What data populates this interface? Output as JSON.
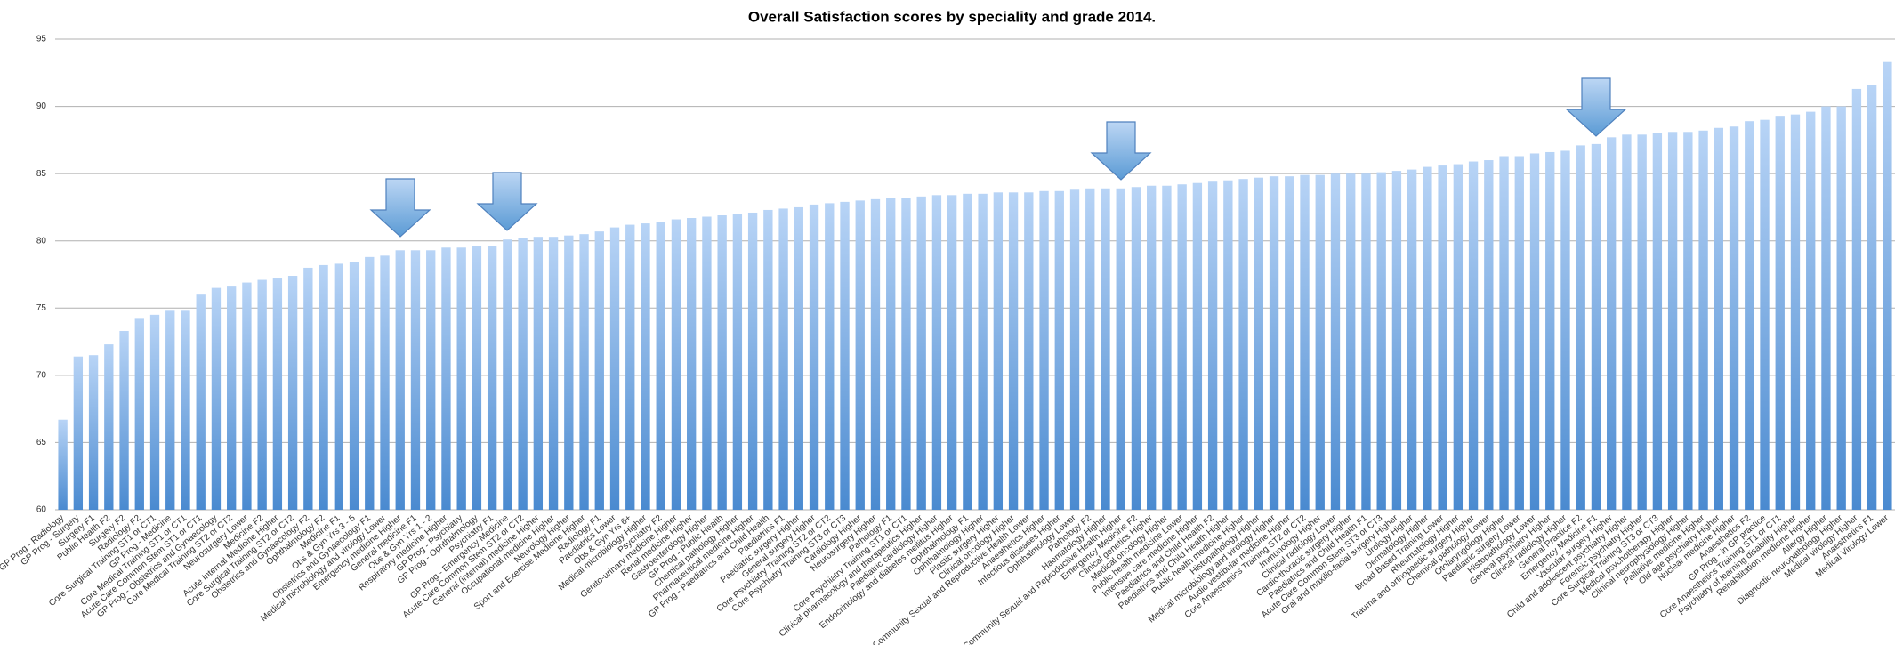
{
  "chart_data": {
    "type": "bar",
    "title": "Overall Satisfaction scores by speciality and grade 2014.",
    "categories": [
      "GP Prog - Radiology",
      "GP Prog - Surgery",
      "Surgery F1",
      "Public Health F2",
      "Surgery F2",
      "Radiology F2",
      "Core Surgical Training ST1 or CT1",
      "GP Prog - Medicine",
      "Core Medical Training ST1 or CT1",
      "Acute Care Common Stem ST1 or CT1",
      "GP Prog - Obstetrics and Gynaecology",
      "Core Medical Training ST2 or CT2",
      "Neurosurgery Lower",
      "Medicine F2",
      "Acute Internal Medicine Higher",
      "Core Surgical Training ST2 or CT2",
      "Obstetrics and Gynaecology F2",
      "Ophthalmology F2",
      "Medicine F1",
      "Obs & Gyn Yrs 3 - 5",
      "Obstetrics and Gynaecology F1",
      "Medical microbiology and virology Lower",
      "Emergency medicine Higher",
      "General medicine F1",
      "Obs & Gyn Yrs 1 - 2",
      "Respiratory medicine Higher",
      "GP Prog - Psychiatry",
      "GP Prog - Ophthalmology",
      "Psychiatry F1",
      "GP Prog - Emergency Medicine",
      "Acute Care Common Stem ST2 or CT2",
      "General (internal) medicine Higher",
      "Occupational medicine Higher",
      "Neurology Higher",
      "Sport and Exercise Medicine Higher",
      "Radiology F1",
      "Paediatrics Lower",
      "Obs & Gyn Yrs 6+",
      "Medical microbiology Higher",
      "Psychiatry F2",
      "Genito-urinary medicine Higher",
      "Renal medicine Higher",
      "Gastroenterology Higher",
      "GP Prog - Public Health",
      "Chemical pathology Higher",
      "Pharmaceutical medicine Higher",
      "GP Prog - Paediatrics and Child Health",
      "Paediatrics F1",
      "Paediatric surgery Higher",
      "General surgery Higher",
      "Core Psychiatry Training ST2 or CT2",
      "Core Psychiatry Training ST3 or CT3",
      "Cardiology Higher",
      "Neurosurgery Higher",
      "Pathology F1",
      "Core Psychiatry Training ST1 or CT1",
      "Clinical pharmacology and therapeutics Higher",
      "Paediatric cardiology Higher",
      "Endocrinology and diabetes mellitus Higher",
      "Ophthalmology F1",
      "Ophthalmology Higher",
      "Plastic surgery Higher",
      "Clinical oncology Higher",
      "Community Sexual and Reproductive Health Lower",
      "Anaesthetics Higher",
      "Infectious diseases Higher",
      "Ophthalmology Lower",
      "Pathology F2",
      "Haematology Higher",
      "Community Sexual and Reproductive Health Higher",
      "Emergency Medicine F2",
      "Clinical genetics Higher",
      "Medical oncology Higher",
      "Public health medicine Lower",
      "Intensive care medicine Higher",
      "Paediatrics and Child Health F2",
      "Paediatrics and Child Health Higher",
      "Public health medicine Higher",
      "Histopathology Higher",
      "Medical microbiology and virology Higher",
      "Audio vestibular medicine Higher",
      "Core Anaesthetics Training ST2 or CT2",
      "Immunology Higher",
      "Clinical radiology Lower",
      "Cardio-thoracic surgery Higher",
      "Paediatrics and Child Health F1",
      "Acute Care Common Stem ST3 or CT3",
      "Oral and maxillo-facial surgery Higher",
      "Urology Higher",
      "Dermatology Higher",
      "Broad Based Training Lower",
      "Rheumatology Higher",
      "Trauma and orthopaedic surgery Higher",
      "Chemical pathology Lower",
      "Otolaryngology Higher",
      "Paediatric surgery Lower",
      "Histopathology Lower",
      "General psychiatry Higher",
      "Clinical radiology Higher",
      "General Practice F2",
      "Emergency Medicine F1",
      "Vascular surgery Higher",
      "Child and adolescent psychiatry Higher",
      "Forensic psychiatry Higher",
      "Core Surgical Training ST3 or CT3",
      "Medical psychotherapy Higher",
      "Clinical neurophysiology Higher",
      "Palliative medicine Higher",
      "Old age psychiatry Higher",
      "Nuclear medicine Higher",
      "Anaesthetics F2",
      "GP Prog - in GP practice",
      "Core Anaesthetics Training ST1 or CT1",
      "Psychiatry of learning disability Higher",
      "Rehabilitation medicine Higher",
      "Allergy Higher",
      "Diagnostic neuropathology Higher",
      "Medical virology Higher",
      "Anaesthetics F1",
      "Medical Virology Lower"
    ],
    "values": [
      66.7,
      71.4,
      71.5,
      72.3,
      73.3,
      74.2,
      74.5,
      74.8,
      74.8,
      76.0,
      76.5,
      76.6,
      76.9,
      77.1,
      77.2,
      77.4,
      78.0,
      78.2,
      78.3,
      78.4,
      78.8,
      78.9,
      79.3,
      79.3,
      79.3,
      79.5,
      79.5,
      79.6,
      79.6,
      80.1,
      80.2,
      80.3,
      80.3,
      80.4,
      80.5,
      80.7,
      81.0,
      81.2,
      81.3,
      81.4,
      81.6,
      81.7,
      81.8,
      81.9,
      82.0,
      82.1,
      82.3,
      82.4,
      82.5,
      82.7,
      82.8,
      82.9,
      83.0,
      83.1,
      83.2,
      83.2,
      83.3,
      83.4,
      83.4,
      83.5,
      83.5,
      83.6,
      83.6,
      83.6,
      83.7,
      83.7,
      83.8,
      83.9,
      83.9,
      83.9,
      84.0,
      84.1,
      84.1,
      84.2,
      84.3,
      84.4,
      84.5,
      84.6,
      84.7,
      84.8,
      84.8,
      84.9,
      84.9,
      85.0,
      85.0,
      85.0,
      85.1,
      85.2,
      85.3,
      85.5,
      85.6,
      85.7,
      85.9,
      86.0,
      86.3,
      86.3,
      86.5,
      86.6,
      86.7,
      87.1,
      87.2,
      87.7,
      87.9,
      87.9,
      88.0,
      88.1,
      88.1,
      88.2,
      88.4,
      88.5,
      88.9,
      89.0,
      89.3,
      89.4,
      89.6,
      90.0,
      90.0,
      91.3,
      91.6,
      93.3
    ],
    "ylim": [
      60,
      95
    ],
    "yticks": [
      60,
      65,
      70,
      75,
      80,
      85,
      90,
      95
    ],
    "grid": true
  }
}
